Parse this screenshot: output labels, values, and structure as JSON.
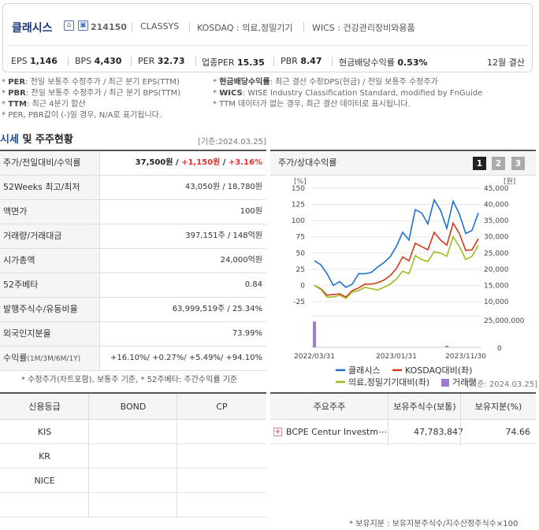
{
  "header": {
    "company_name": "클래시스",
    "ticker": "214150",
    "eng_name": "CLASSYS",
    "market": "KOSDAQ : 의료,정밀기기",
    "wics": "WICS : 건강관리장비와용품",
    "metrics": [
      {
        "label": "EPS",
        "value": "1,146"
      },
      {
        "label": "BPS",
        "value": "4,430"
      },
      {
        "label": "PER",
        "value": "32.73"
      },
      {
        "label": "업종PER",
        "value": "15.35"
      },
      {
        "label": "PBR",
        "value": "8.47"
      },
      {
        "label": "현금배당수익률",
        "value": "0.53%"
      }
    ],
    "fiscal": "12월 결산"
  },
  "notes": {
    "left": [
      {
        "key": "PER",
        "text": ": 전일 보통주 수정주가 / 최근 분기 EPS(TTM)"
      },
      {
        "key": "PBR",
        "text": ": 전일 보통주 수정주가 / 최근 분기 BPS(TTM)"
      },
      {
        "key": "TTM",
        "text": ": 최근 4분기 합산"
      },
      {
        "key": "",
        "text": "PER, PBR값이 (-)일 경우, N/A로 표기됩니다."
      }
    ],
    "right": [
      {
        "key": "현금배당수익률",
        "text": ": 최근 결산 수정DPS(현금) / 전일 보통주 수정주가"
      },
      {
        "key": "WICS",
        "text": ": WISE Industry Classification Standard, modified by FnGuide"
      },
      {
        "key": "",
        "text": "TTM 데이터가 없는 경우, 최근 결산 데이터로 표시됩니다."
      }
    ]
  },
  "section": {
    "title_blue": "시세",
    "title_rest": " 및 주주현황",
    "base_date": "[기준:2024.03.25]"
  },
  "price_table": [
    {
      "label": "주가/전일대비/수익률",
      "v1": "37,500원",
      "v2": "+1,150원",
      "v3": "+3.16%"
    },
    {
      "label": "52Weeks 최고/최저",
      "value": "43,050원 / 18,780원"
    },
    {
      "label": "액면가",
      "value": "100원"
    },
    {
      "label": "거래량/거래대금",
      "value": "397,151주 / 148억원"
    },
    {
      "label": "시가총액",
      "value": "24,000억원"
    },
    {
      "label": "52주베타",
      "value": "0.84"
    },
    {
      "label": "발행주식수/유동비율",
      "value": "63,999,519주 / 25.34%"
    },
    {
      "label": "외국인지분율",
      "value": "73.99%"
    },
    {
      "label": "수익률",
      "label_small": "(1M/3M/6M/1Y)",
      "value": "+16.10%/ +0.27%/ +5.49%/ +94.10%"
    }
  ],
  "price_note": "* 수정주가(차트포함), 보통주 기준, * 52주베타: 주간수익률 기준",
  "chart_panel": {
    "title": "주가/상대수익률",
    "buttons": [
      "1",
      "2",
      "3"
    ],
    "active_button": "1"
  },
  "chart_data": {
    "type": "line",
    "left_axis_unit": "[%]",
    "right_axis_unit": "[원]",
    "left_ticks": [
      "150",
      "125",
      "100",
      "75",
      "50",
      "25",
      "0",
      "-25"
    ],
    "right_ticks": [
      "45,000",
      "40,000",
      "35,000",
      "30,000",
      "25,000",
      "20,000",
      "15,000",
      "10,000"
    ],
    "volume_ticks": [
      "25,000,000",
      "0"
    ],
    "x_labels": [
      "2022/03/31",
      "2023/01/31",
      "2023/11/30"
    ],
    "ylim_left": [
      -25,
      150
    ],
    "ylim_right": [
      10000,
      45000
    ],
    "n_points": 27,
    "series": [
      {
        "name": "클래시스",
        "color": "#1f6fd1",
        "values": [
          38,
          32,
          18,
          0,
          6,
          -3,
          2,
          18,
          18,
          20,
          28,
          35,
          44,
          60,
          82,
          70,
          117,
          112,
          95,
          132,
          116,
          88,
          130,
          110,
          80,
          85,
          112
        ]
      },
      {
        "name": "KOSDAQ대비(좌)",
        "color": "#d4381d",
        "values": [
          0,
          -5,
          -15,
          -14,
          -13,
          -18,
          -8,
          -4,
          2,
          2,
          4,
          8,
          15,
          26,
          44,
          38,
          65,
          60,
          55,
          82,
          70,
          62,
          96,
          80,
          54,
          55,
          72
        ]
      },
      {
        "name": "의료,정밀기기대비(좌)",
        "color": "#9cbd1e",
        "values": [
          0,
          -6,
          -18,
          -18,
          -15,
          -20,
          -10,
          -8,
          -3,
          -5,
          -7,
          -3,
          2,
          10,
          22,
          18,
          46,
          40,
          37,
          52,
          50,
          45,
          75,
          60,
          40,
          45,
          62
        ]
      }
    ],
    "volume": {
      "name": "거래량",
      "color": "#a07bd3",
      "values": [
        24000000,
        0,
        0,
        0,
        0,
        0,
        0,
        0,
        0,
        0,
        0,
        0,
        0,
        0,
        0,
        0,
        0,
        0,
        0,
        0,
        0,
        1500000,
        0,
        0,
        0,
        0,
        0
      ]
    }
  },
  "credit_table": {
    "headers": [
      "신용등급",
      "BOND",
      "CP"
    ],
    "rows": [
      "KIS",
      "KR",
      "NICE",
      ""
    ]
  },
  "holders_table": {
    "base_date": "[기준: 2024.03.25]",
    "headers": [
      "주요주주",
      "보유주식수(보통)",
      "보유지분(%)"
    ],
    "rows": [
      {
        "name": "BCPE Centur Investm⋯",
        "shares": "47,783,847",
        "ratio": "74.66"
      }
    ]
  },
  "footnote": "* 보유지분 : 보유지분주식수/지수산정주식수×100"
}
